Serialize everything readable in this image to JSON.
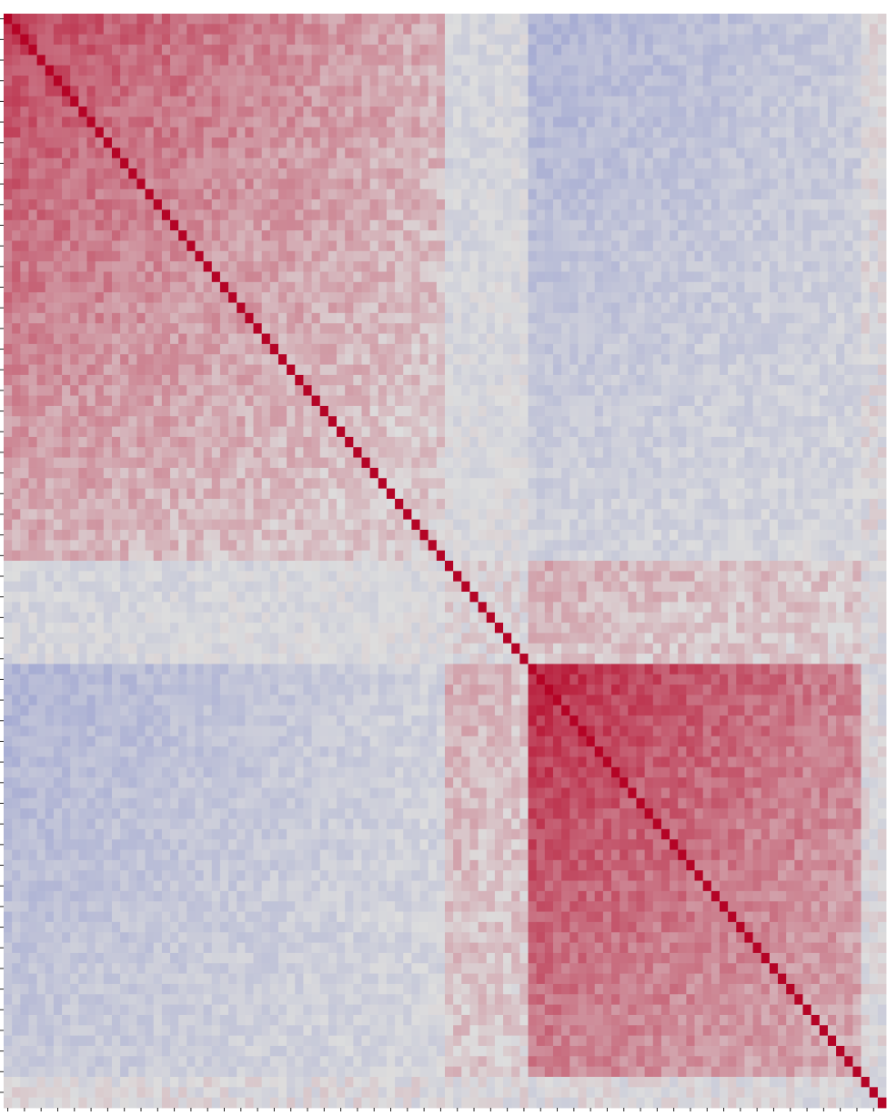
{
  "chart_data": {
    "type": "heatmap",
    "title": "",
    "xlabel": "",
    "ylabel": "",
    "colormap": "coolwarm",
    "value_range": [
      -1,
      1
    ],
    "colors": {
      "negative": "#3b4cc0",
      "neutral": "#dddddd",
      "positive": "#b40426"
    },
    "grid": false,
    "colorbar": false,
    "tick_labels_visible": false,
    "matrix_size": 106,
    "groups": [
      {
        "block": "A",
        "start": 1,
        "end": 53
      },
      {
        "block": "B",
        "start": 54,
        "end": 103
      },
      {
        "block": "C",
        "start": 104,
        "end": 106
      }
    ],
    "within_block_correlation": 0.45,
    "cross_block_correlation": -0.2,
    "diagonal_value": 1.0
  }
}
